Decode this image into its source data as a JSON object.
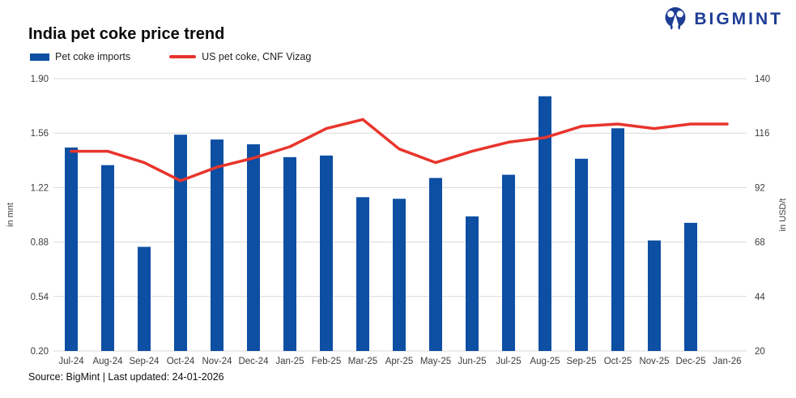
{
  "brand": {
    "name": "BIGMINT",
    "color": "#1e3d96"
  },
  "header": {
    "title": "India pet coke price trend"
  },
  "footer": {
    "text": "Source: BigMint | Last updated: 24-01-2026"
  },
  "chart_data": {
    "type": "bar",
    "title": "India pet coke price trend",
    "categories": [
      "Jul-24",
      "Aug-24",
      "Sep-24",
      "Oct-24",
      "Nov-24",
      "Dec-24",
      "Jan-25",
      "Feb-25",
      "Mar-25",
      "Apr-25",
      "May-25",
      "Jun-25",
      "Jul-25",
      "Aug-25",
      "Sep-25",
      "Oct-25",
      "Nov-25",
      "Dec-25",
      "Jan-26"
    ],
    "series": [
      {
        "name": "Pet coke imports",
        "type": "bar",
        "axis": "left",
        "color": "#0d4fa3",
        "values": [
          1.47,
          1.36,
          0.85,
          1.55,
          1.52,
          1.49,
          1.41,
          1.42,
          1.16,
          1.15,
          1.28,
          1.04,
          1.3,
          1.79,
          1.4,
          1.59,
          0.89,
          1.0,
          null
        ]
      },
      {
        "name": "US pet coke, CNF Vizag",
        "type": "line",
        "axis": "right",
        "color": "#e8352c",
        "values": [
          108,
          108,
          103,
          95,
          101,
          105,
          110,
          118,
          122,
          109,
          103,
          108,
          112,
          114,
          119,
          120,
          118,
          120,
          120
        ]
      }
    ],
    "left_axis": {
      "label": "in mnt",
      "min": 0.2,
      "max": 1.9,
      "ticks": [
        "1.90",
        "1.56",
        "1.22",
        "0.88",
        "0.54",
        "0.20"
      ]
    },
    "right_axis": {
      "label": "in USD/t",
      "min": 20,
      "max": 140,
      "ticks": [
        "140",
        "116",
        "92",
        "68",
        "44",
        "20"
      ]
    },
    "grid": "horizontal",
    "legend_position": "top-left",
    "gridline_color": "#d9d9d9",
    "tick_label_color": "#3c3c3c"
  }
}
